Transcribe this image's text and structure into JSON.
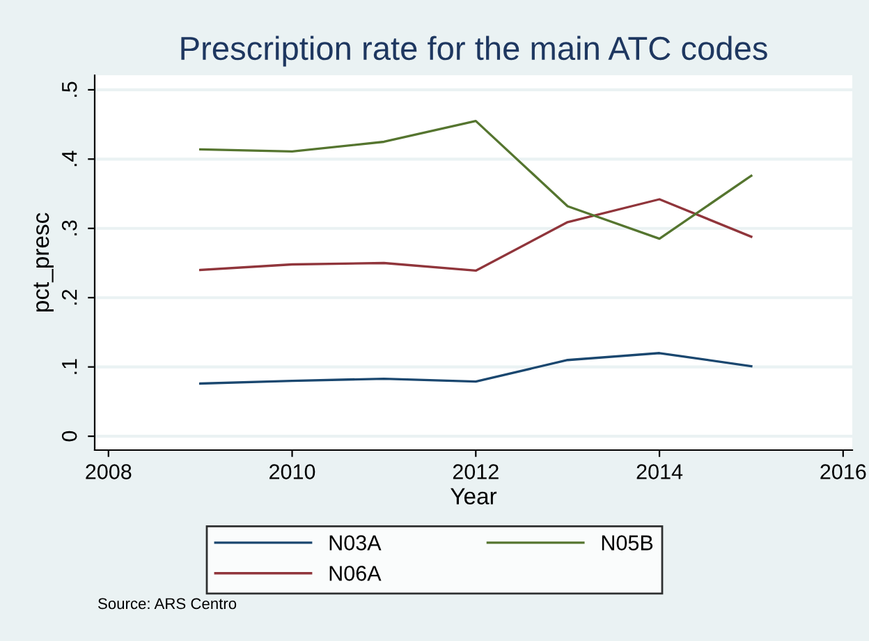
{
  "chart_data": {
    "type": "line",
    "title": "Prescription rate for the main ATC codes",
    "xlabel": "Year",
    "ylabel": "pct_presc",
    "x": [
      2009,
      2010,
      2011,
      2012,
      2013,
      2014,
      2015
    ],
    "series": [
      {
        "name": "N03A",
        "color": "#1a476f",
        "values": [
          0.076,
          0.08,
          0.083,
          0.079,
          0.11,
          0.12,
          0.101
        ]
      },
      {
        "name": "N06A",
        "color": "#90353b",
        "values": [
          0.24,
          0.248,
          0.25,
          0.239,
          0.309,
          0.342,
          0.288
        ]
      },
      {
        "name": "N05B",
        "color": "#55752f",
        "values": [
          0.414,
          0.411,
          0.425,
          0.455,
          0.332,
          0.285,
          0.376
        ]
      }
    ],
    "xlim": [
      2007.85,
      2016.1
    ],
    "xticks": [
      2008,
      2010,
      2012,
      2014,
      2016
    ],
    "ylim": [
      -0.02,
      0.521
    ],
    "yticks": [
      {
        "value": 0,
        "label": "0"
      },
      {
        "value": 0.1,
        "label": ".1"
      },
      {
        "value": 0.2,
        "label": ".2"
      },
      {
        "value": 0.3,
        "label": ".3"
      },
      {
        "value": 0.4,
        "label": ".4"
      },
      {
        "value": 0.5,
        "label": ".5"
      }
    ],
    "grid": "y",
    "legend": "bottom",
    "marker": "none",
    "line_style": "solid",
    "annotations": [
      "Source: ARS Centro"
    ]
  }
}
